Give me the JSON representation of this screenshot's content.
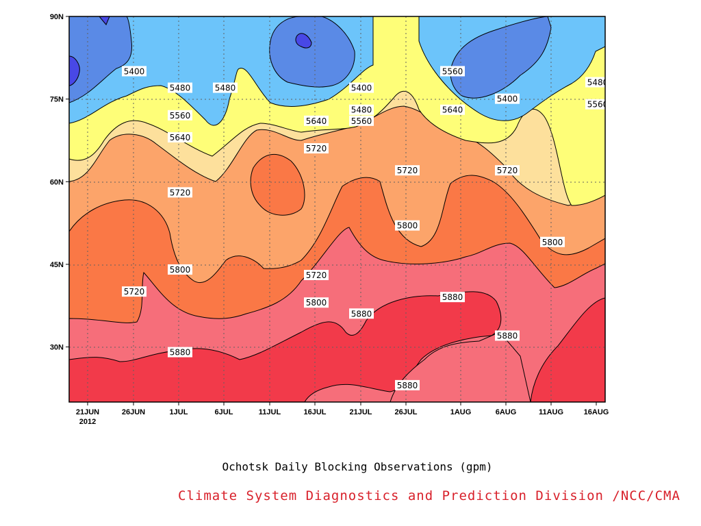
{
  "chart_data": {
    "type": "heatmap",
    "x": [
      "21JUN",
      "26JUN",
      "1JUL",
      "6JUL",
      "11JUL",
      "16JUL",
      "21JUL",
      "26JUL",
      "1AUG",
      "6AUG",
      "11AUG",
      "16AUG"
    ],
    "x_year_label": "2012",
    "y_ticks": [
      "30N",
      "45N",
      "60N",
      "75N",
      "90N"
    ],
    "ylim": [
      20,
      90
    ],
    "levels": [
      5400,
      5480,
      5560,
      5640,
      5720,
      5800,
      5880
    ],
    "colors": {
      "below_5400": "#5a8ae6",
      "5400_5480": "#6cc4fa",
      "5480_5560": "#fefe78",
      "5560_5640": "#fde09c",
      "5640_5720": "#fca46a",
      "5720_5800": "#fa7846",
      "5800_5880": "#f66e7a",
      "above_5880": "#f23a4a",
      "deep_minimum": "#4848e6"
    },
    "contour_labels": [
      {
        "text": "5400",
        "x": "21JUN",
        "y": 80
      },
      {
        "text": "5480",
        "x": "26JUN",
        "y": 77
      },
      {
        "text": "5480",
        "x": "1JUL",
        "y": 77
      },
      {
        "text": "5560",
        "x": "26JUN",
        "y": 72
      },
      {
        "text": "5640",
        "x": "26JUN",
        "y": 68
      },
      {
        "text": "5720",
        "x": "26JUN",
        "y": 58
      },
      {
        "text": "5800",
        "x": "26JUN",
        "y": 44
      },
      {
        "text": "5720",
        "x": "21JUN",
        "y": 40
      },
      {
        "text": "5880",
        "x": "26JUN",
        "y": 29
      },
      {
        "text": "5400",
        "x": "16JUL",
        "y": 77
      },
      {
        "text": "5480",
        "x": "16JUL",
        "y": 73
      },
      {
        "text": "5560",
        "x": "16JUL",
        "y": 71
      },
      {
        "text": "5640",
        "x": "11JUL",
        "y": 71
      },
      {
        "text": "5720",
        "x": "11JUL",
        "y": 66
      },
      {
        "text": "5720",
        "x": "11JUL",
        "y": 43
      },
      {
        "text": "5800",
        "x": "11JUL",
        "y": 38
      },
      {
        "text": "5880",
        "x": "16JUL",
        "y": 36
      },
      {
        "text": "5720",
        "x": "21JUL",
        "y": 62
      },
      {
        "text": "5800",
        "x": "21JUL",
        "y": 52
      },
      {
        "text": "5560",
        "x": "26JUL",
        "y": 80
      },
      {
        "text": "5640",
        "x": "26JUL",
        "y": 73
      },
      {
        "text": "5880",
        "x": "26JUL",
        "y": 39
      },
      {
        "text": "5880",
        "x": "21JUL",
        "y": 23
      },
      {
        "text": "5400",
        "x": "1AUG",
        "y": 75
      },
      {
        "text": "5720",
        "x": "1AUG",
        "y": 62
      },
      {
        "text": "5880",
        "x": "1AUG",
        "y": 32
      },
      {
        "text": "5800",
        "x": "6AUG",
        "y": 49
      },
      {
        "text": "5480",
        "x": "11AUG",
        "y": 78
      },
      {
        "text": "5560",
        "x": "11AUG",
        "y": 74
      }
    ],
    "grid": true
  },
  "caption": {
    "title": "Ochotsk Daily Blocking Observations (gpm)",
    "credit": "Climate System Diagnostics and Prediction Division /NCC/CMA",
    "credit_color": "#d8202a"
  }
}
